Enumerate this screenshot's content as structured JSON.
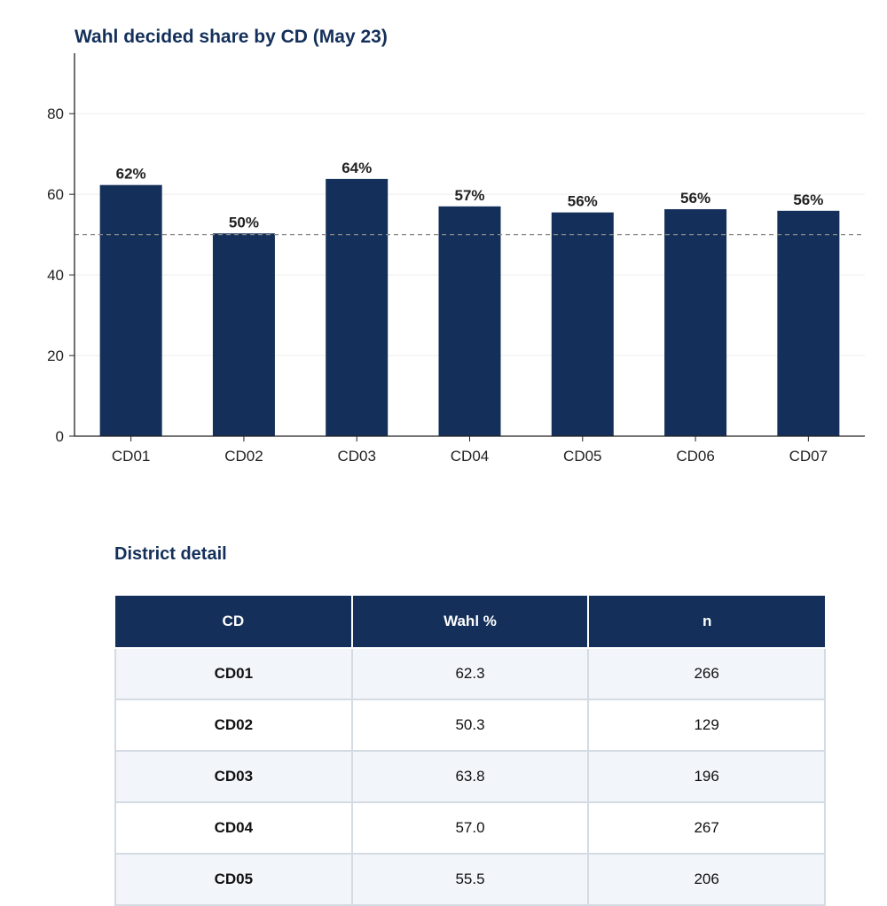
{
  "chart_data": {
    "type": "bar",
    "title": "Wahl decided share by CD (May 23)",
    "categories": [
      "CD01",
      "CD02",
      "CD03",
      "CD04",
      "CD05",
      "CD06",
      "CD07"
    ],
    "values": [
      62.3,
      50.3,
      63.8,
      57.0,
      55.5,
      56.3,
      55.9
    ],
    "data_labels": [
      "62%",
      "50%",
      "64%",
      "57%",
      "56%",
      "56%",
      "56%"
    ],
    "xlabel": "",
    "ylabel": "",
    "ylim": [
      0,
      95
    ],
    "yticks": [
      0,
      20,
      40,
      60,
      80
    ],
    "reference_line": 50,
    "grid": "horizontal",
    "colors": {
      "bar": "#14305a",
      "grid": "#eeeeee",
      "reference": "#888888",
      "axis": "#222222"
    }
  },
  "table": {
    "title": "District detail",
    "headers": [
      "CD",
      "Wahl %",
      "n"
    ],
    "rows": [
      [
        "CD01",
        "62.3",
        "266"
      ],
      [
        "CD02",
        "50.3",
        "129"
      ],
      [
        "CD03",
        "63.8",
        "196"
      ],
      [
        "CD04",
        "57.0",
        "267"
      ],
      [
        "CD05",
        "55.5",
        "206"
      ]
    ]
  },
  "colors": {
    "header_bg": "#14305a",
    "header_text": "#ffffff",
    "row_alt": "#f2f5fa",
    "border": "#d5dbe3"
  }
}
